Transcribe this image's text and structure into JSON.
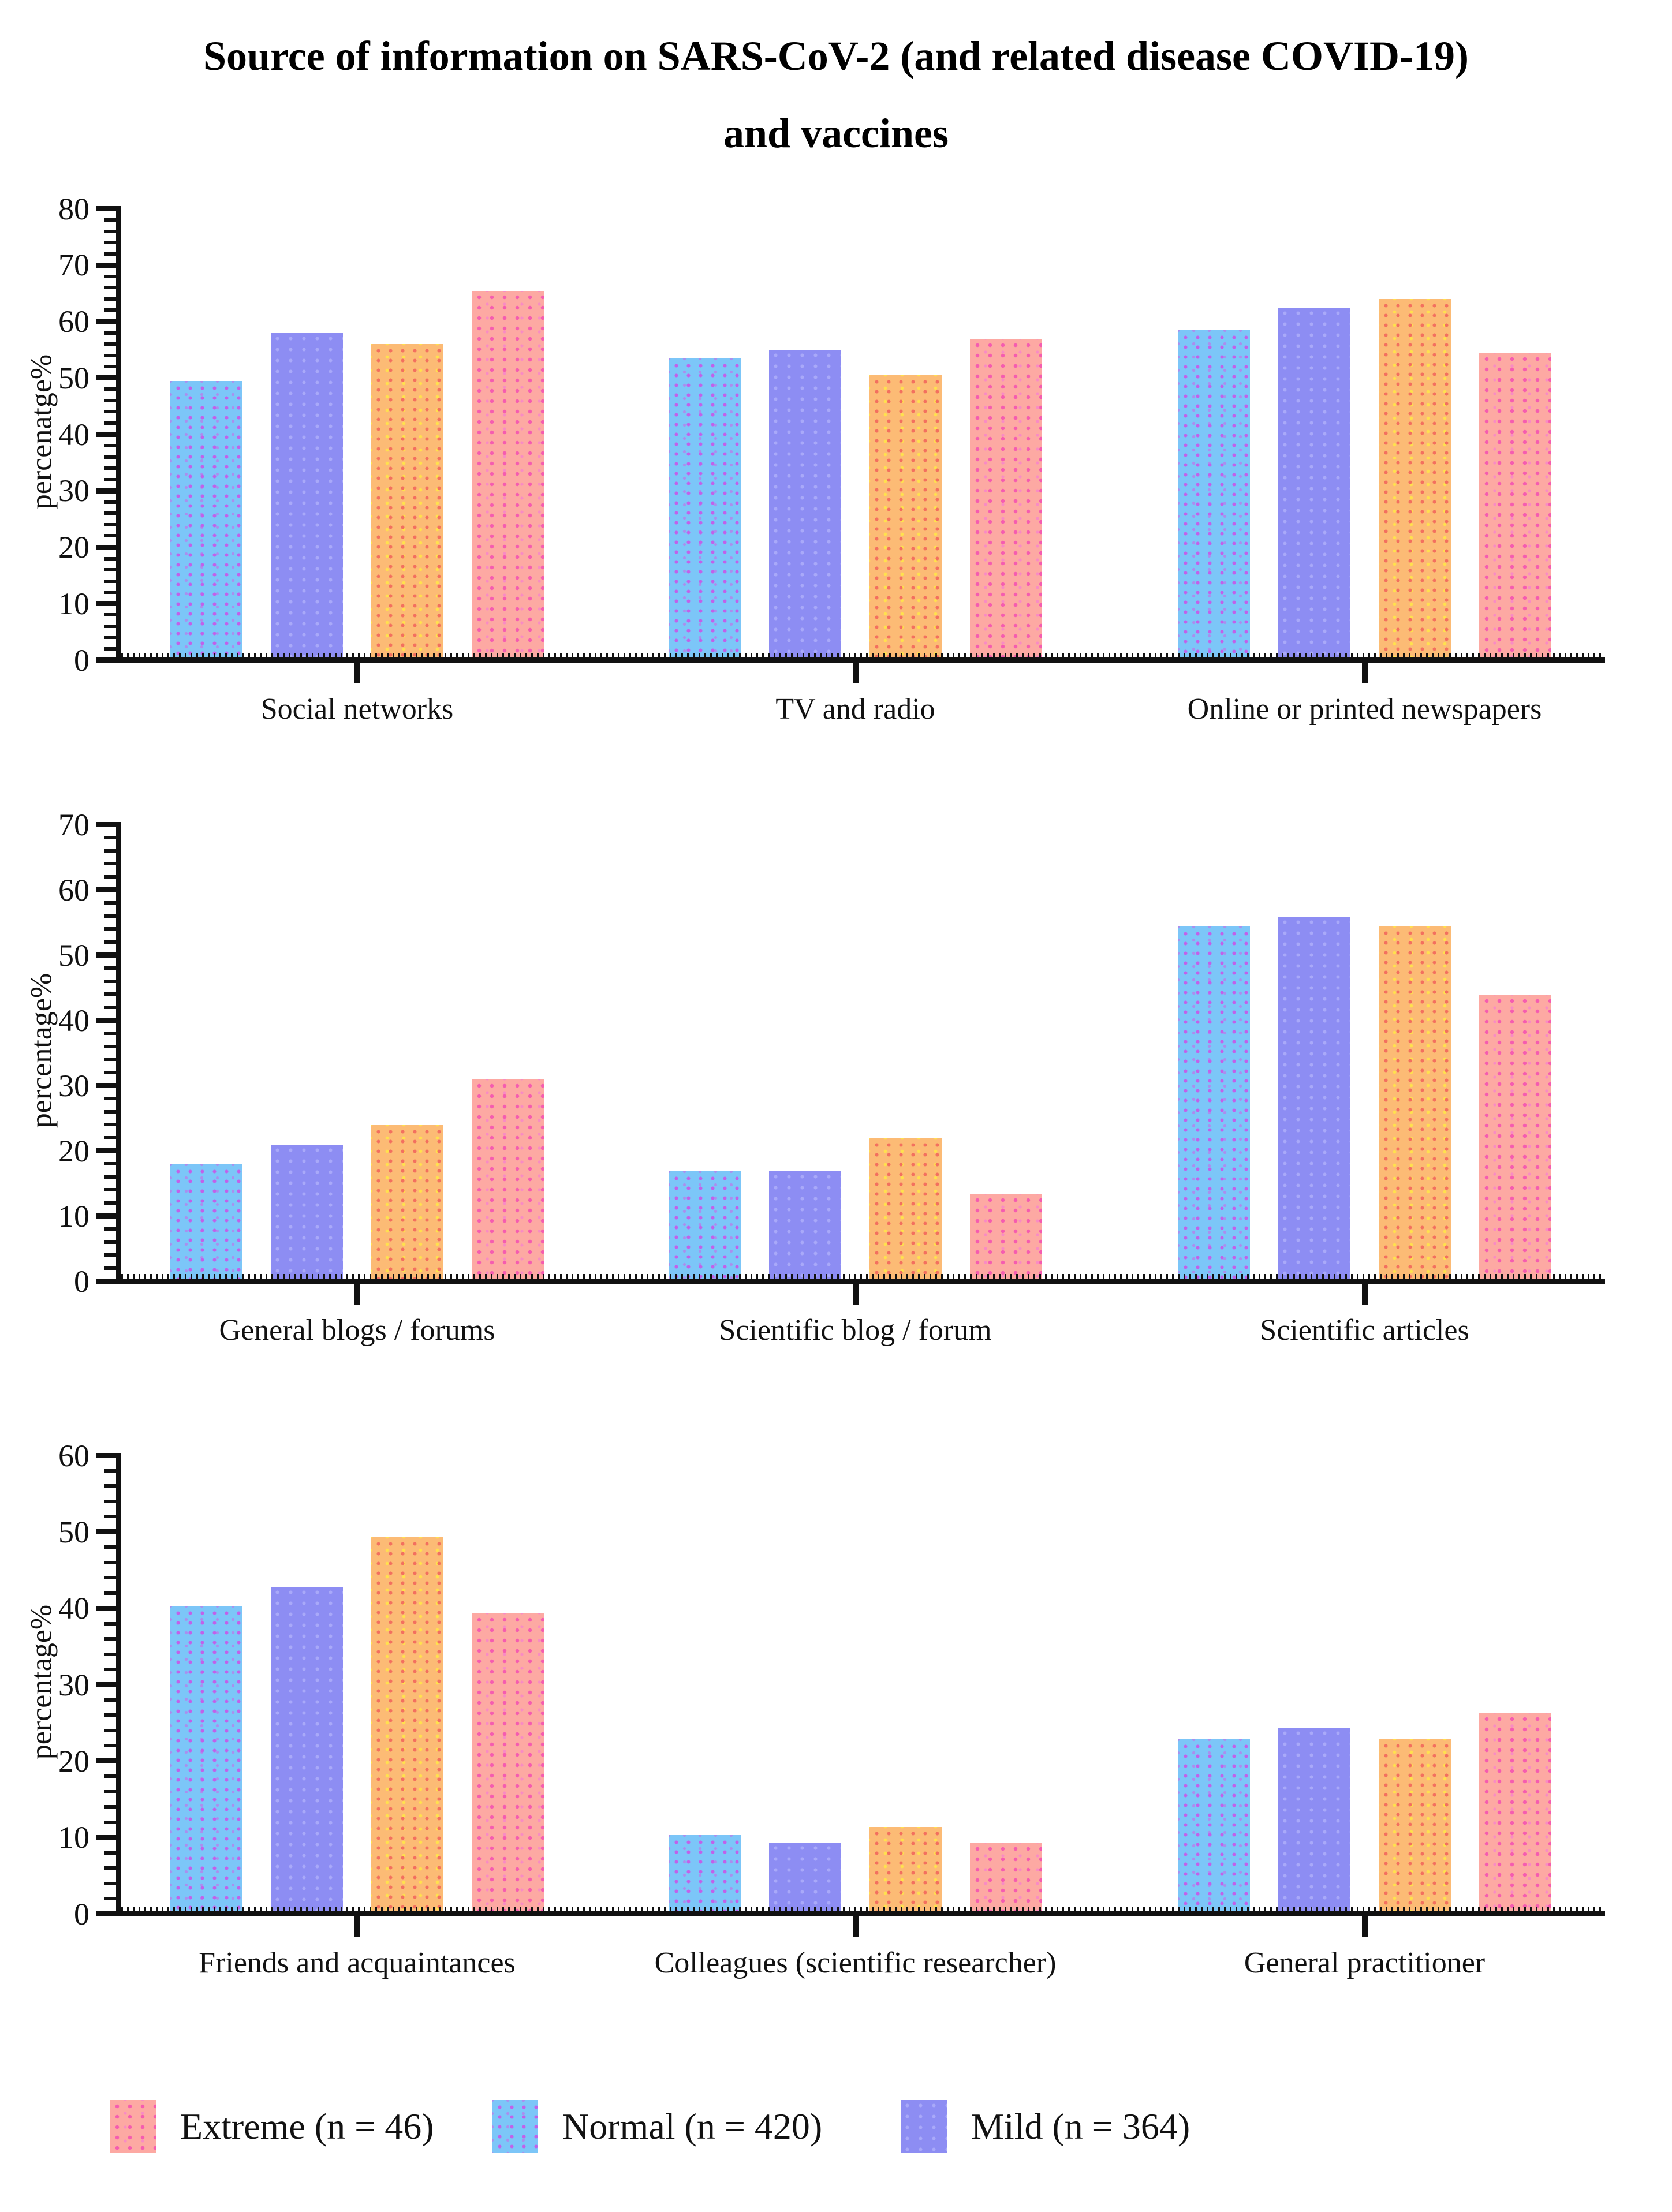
{
  "title": {
    "line1": "Source of information on SARS-CoV-2 (and related disease COVID-19)",
    "line2": "and vaccines"
  },
  "legend": [
    {
      "label": "Extreme (n = 46)",
      "series_class": "s3",
      "color": "#fda9a3"
    },
    {
      "label": "Normal (n = 420)",
      "series_class": "s0",
      "color": "#7cc6f8"
    },
    {
      "label": "Mild (n = 364)",
      "series_class": "s1",
      "color": "#8d8df3"
    }
  ],
  "colors": {
    "normal_blue": "#7cc6f8",
    "mild_purple": "#8d8df3",
    "orange": "#fcbb75",
    "extreme_pink": "#fda9a3",
    "axis": "#111111"
  },
  "chart_data": [
    {
      "type": "bar",
      "ylabel": "percenatge%",
      "ylim": [
        0,
        80
      ],
      "ytick_major": 10,
      "ytick_minor": 2,
      "grid": false,
      "legend_position": "bottom",
      "categories": [
        "Social networks",
        "TV and radio",
        "Online or printed newspapers"
      ],
      "series": [
        {
          "name": "Normal (n = 420)",
          "class": "s0",
          "color": "#7cc6f8",
          "values": [
            49,
            53,
            58
          ]
        },
        {
          "name": "Mild (n = 364)",
          "class": "s1",
          "color": "#8d8df3",
          "values": [
            57.5,
            54.5,
            62
          ]
        },
        {
          "name": "",
          "class": "s2",
          "color": "#fcbb75",
          "values": [
            55.5,
            50,
            63.5
          ]
        },
        {
          "name": "Extreme (n = 46)",
          "class": "s3",
          "color": "#fda9a3",
          "values": [
            65,
            56.5,
            54
          ]
        }
      ]
    },
    {
      "type": "bar",
      "ylabel": "percentage%",
      "ylim": [
        0,
        70
      ],
      "ytick_major": 10,
      "ytick_minor": 2,
      "grid": false,
      "legend_position": "bottom",
      "categories": [
        "General blogs / forums",
        "Scientific blog / forum",
        "Scientific articles"
      ],
      "series": [
        {
          "name": "Normal (n = 420)",
          "class": "s0",
          "color": "#7cc6f8",
          "values": [
            17.5,
            16.5,
            54
          ]
        },
        {
          "name": "Mild (n = 364)",
          "class": "s1",
          "color": "#8d8df3",
          "values": [
            20.5,
            16.5,
            55.5
          ]
        },
        {
          "name": "",
          "class": "s2",
          "color": "#fcbb75",
          "values": [
            23.5,
            21.5,
            54
          ]
        },
        {
          "name": "Extreme (n = 46)",
          "class": "s3",
          "color": "#fda9a3",
          "values": [
            30.5,
            13,
            43.5
          ]
        }
      ]
    },
    {
      "type": "bar",
      "ylabel": "percentage%",
      "ylim": [
        0,
        60
      ],
      "ytick_major": 10,
      "ytick_minor": 2,
      "grid": false,
      "legend_position": "bottom",
      "categories": [
        "Friends and acquaintances",
        "Colleagues (scientific researcher)",
        "General practitioner"
      ],
      "series": [
        {
          "name": "Normal (n = 420)",
          "class": "s0",
          "color": "#7cc6f8",
          "values": [
            40,
            10,
            22.5
          ]
        },
        {
          "name": "Mild (n = 364)",
          "class": "s1",
          "color": "#8d8df3",
          "values": [
            42.5,
            9,
            24
          ]
        },
        {
          "name": "",
          "class": "s2",
          "color": "#fcbb75",
          "values": [
            49,
            11,
            22.5
          ]
        },
        {
          "name": "Extreme (n = 46)",
          "class": "s3",
          "color": "#fda9a3",
          "values": [
            39,
            9,
            26
          ]
        }
      ]
    }
  ]
}
